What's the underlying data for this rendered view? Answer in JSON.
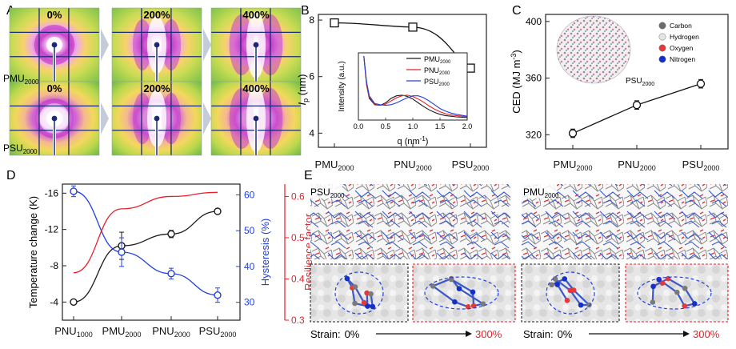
{
  "panels": {
    "A": "A",
    "B": "B",
    "C": "C",
    "D": "D",
    "E": "E"
  },
  "panelA": {
    "pct_top": [
      "0%",
      "200%",
      "400%"
    ],
    "pct_bottom": [
      "0%",
      "200%",
      "400%"
    ],
    "label_top_main": "PMU",
    "label_top_sub": "2000",
    "label_bottom_main": "PSU",
    "label_bottom_sub": "2000"
  },
  "colors": {
    "black": "#1a1a1a",
    "red": "#e8202a",
    "blue": "#2140e0",
    "oxygen": "#e23a3a",
    "nitrogen": "#1430c8"
  },
  "chart_data": [
    {
      "id": "B",
      "type": "line",
      "ylabel_main": "I",
      "ylabel_sub": "p",
      "ylabel_unit": "(nm)",
      "yticks": [
        "4",
        "6",
        "8"
      ],
      "ylim": [
        3.5,
        8.2
      ],
      "categories": [
        {
          "main": "PMU",
          "sub": "2000"
        },
        {
          "main": "PNU",
          "sub": "2000"
        },
        {
          "main": "PSU",
          "sub": "2000"
        }
      ],
      "values": [
        7.9,
        7.75,
        6.3
      ],
      "inset": {
        "type": "line",
        "xlabel": "q (nm",
        "xlabel_sup": "-1",
        "xlabel_close": ")",
        "ylabel": "Intensity (a.u.)",
        "xticks": [
          "0.0",
          "0.5",
          "1.0",
          "1.5",
          "2.0"
        ],
        "xlim": [
          0,
          2.0
        ],
        "legend": [
          {
            "main": "PMU",
            "sub": "2000",
            "color": "#1a1a1a"
          },
          {
            "main": "PNU",
            "sub": "2000",
            "color": "#e8202a"
          },
          {
            "main": "PSU",
            "sub": "2000",
            "color": "#2140e0"
          }
        ],
        "series": [
          {
            "name": "PMU2000",
            "color": "#1a1a1a",
            "x": [
              0.1,
              0.15,
              0.2,
              0.3,
              0.4,
              0.5,
              0.6,
              0.7,
              0.8,
              0.9,
              1.0,
              1.1,
              1.2,
              1.3,
              1.4,
              1.5,
              1.6,
              1.7,
              1.8,
              2.0
            ],
            "y": [
              1.0,
              0.55,
              0.34,
              0.24,
              0.23,
              0.27,
              0.34,
              0.38,
              0.39,
              0.37,
              0.33,
              0.27,
              0.21,
              0.16,
              0.12,
              0.09,
              0.07,
              0.06,
              0.05,
              0.04
            ]
          },
          {
            "name": "PNU2000",
            "color": "#e8202a",
            "x": [
              0.1,
              0.15,
              0.2,
              0.3,
              0.4,
              0.5,
              0.6,
              0.7,
              0.8,
              0.9,
              1.0,
              1.1,
              1.2,
              1.3,
              1.4,
              1.5,
              1.6,
              1.7,
              1.8,
              2.0
            ],
            "y": [
              1.0,
              0.56,
              0.36,
              0.25,
              0.23,
              0.25,
              0.3,
              0.35,
              0.38,
              0.39,
              0.37,
              0.33,
              0.28,
              0.22,
              0.17,
              0.13,
              0.1,
              0.08,
              0.07,
              0.05
            ]
          },
          {
            "name": "PSU2000",
            "color": "#2140e0",
            "x": [
              0.1,
              0.15,
              0.2,
              0.3,
              0.4,
              0.5,
              0.6,
              0.7,
              0.8,
              0.9,
              1.0,
              1.1,
              1.2,
              1.3,
              1.4,
              1.5,
              1.6,
              1.7,
              1.8,
              2.0
            ],
            "y": [
              1.0,
              0.6,
              0.38,
              0.26,
              0.24,
              0.23,
              0.24,
              0.27,
              0.31,
              0.35,
              0.38,
              0.38,
              0.35,
              0.3,
              0.24,
              0.18,
              0.14,
              0.11,
              0.09,
              0.06
            ]
          }
        ]
      }
    },
    {
      "id": "C",
      "type": "line",
      "ylabel": "CED (MJ m",
      "ylabel_sup": "-3",
      "ylabel_close": ")",
      "yticks": [
        "320",
        "360",
        "400"
      ],
      "ylim": [
        310,
        405
      ],
      "categories": [
        {
          "main": "PMU",
          "sub": "2000"
        },
        {
          "main": "PNU",
          "sub": "2000"
        },
        {
          "main": "PSU",
          "sub": "2000"
        }
      ],
      "values": [
        321,
        341,
        356
      ],
      "errors": [
        3,
        3,
        3
      ],
      "inset_label_main": "PSU",
      "inset_label_sub": "2000",
      "legend": [
        {
          "label": "Carbon",
          "color": "#6b6b6b"
        },
        {
          "label": "Hydrogen",
          "color": "#e4e4e4"
        },
        {
          "label": "Oxygen",
          "color": "#e23a3a"
        },
        {
          "label": "Nitrogen",
          "color": "#1430c8"
        }
      ]
    },
    {
      "id": "D",
      "type": "line",
      "ylabel_left": "Temperature change (K)",
      "ylabel_right1": "Hysteresis (%)",
      "ylabel_right2": "Resilience factor",
      "yticks_left": [
        "-4",
        "-8",
        "-12",
        "-16"
      ],
      "ylim_left": [
        -2,
        -17
      ],
      "yticks_right1": [
        "30",
        "40",
        "50",
        "60"
      ],
      "ylim_right1": [
        25,
        63
      ],
      "yticks_right2": [
        "0.3",
        "0.4",
        "0.5",
        "0.6"
      ],
      "ylim_right2": [
        0.3,
        0.63
      ],
      "categories": [
        {
          "main": "PNU",
          "sub": "1000"
        },
        {
          "main": "PMU",
          "sub": "2000"
        },
        {
          "main": "PNU",
          "sub": "2000"
        },
        {
          "main": "PSU",
          "sub": "2000"
        }
      ],
      "series": [
        {
          "name": "Temperature change",
          "axis": "left",
          "color": "#1a1a1a",
          "marker": "circle",
          "values": [
            -4.0,
            -10.2,
            -11.5,
            -14.0
          ],
          "errors": [
            0.2,
            1.5,
            0.4,
            0.2
          ]
        },
        {
          "name": "Hysteresis",
          "axis": "right1",
          "color": "#2140e0",
          "marker": "circle",
          "values": [
            61,
            44,
            38,
            32
          ],
          "errors": [
            1.5,
            4.0,
            1.5,
            2.0
          ]
        },
        {
          "name": "Resilience factor",
          "axis": "right2",
          "color": "#e8202a",
          "marker": "none",
          "values": [
            0.415,
            0.57,
            0.6,
            0.61
          ]
        }
      ]
    }
  ],
  "panelE": {
    "left_label_main": "PSU",
    "left_label_sub": "2000",
    "right_label_main": "PMU",
    "right_label_sub": "2000",
    "strain_label": "Strain:",
    "strain_from": "0%",
    "strain_to": "300%"
  }
}
